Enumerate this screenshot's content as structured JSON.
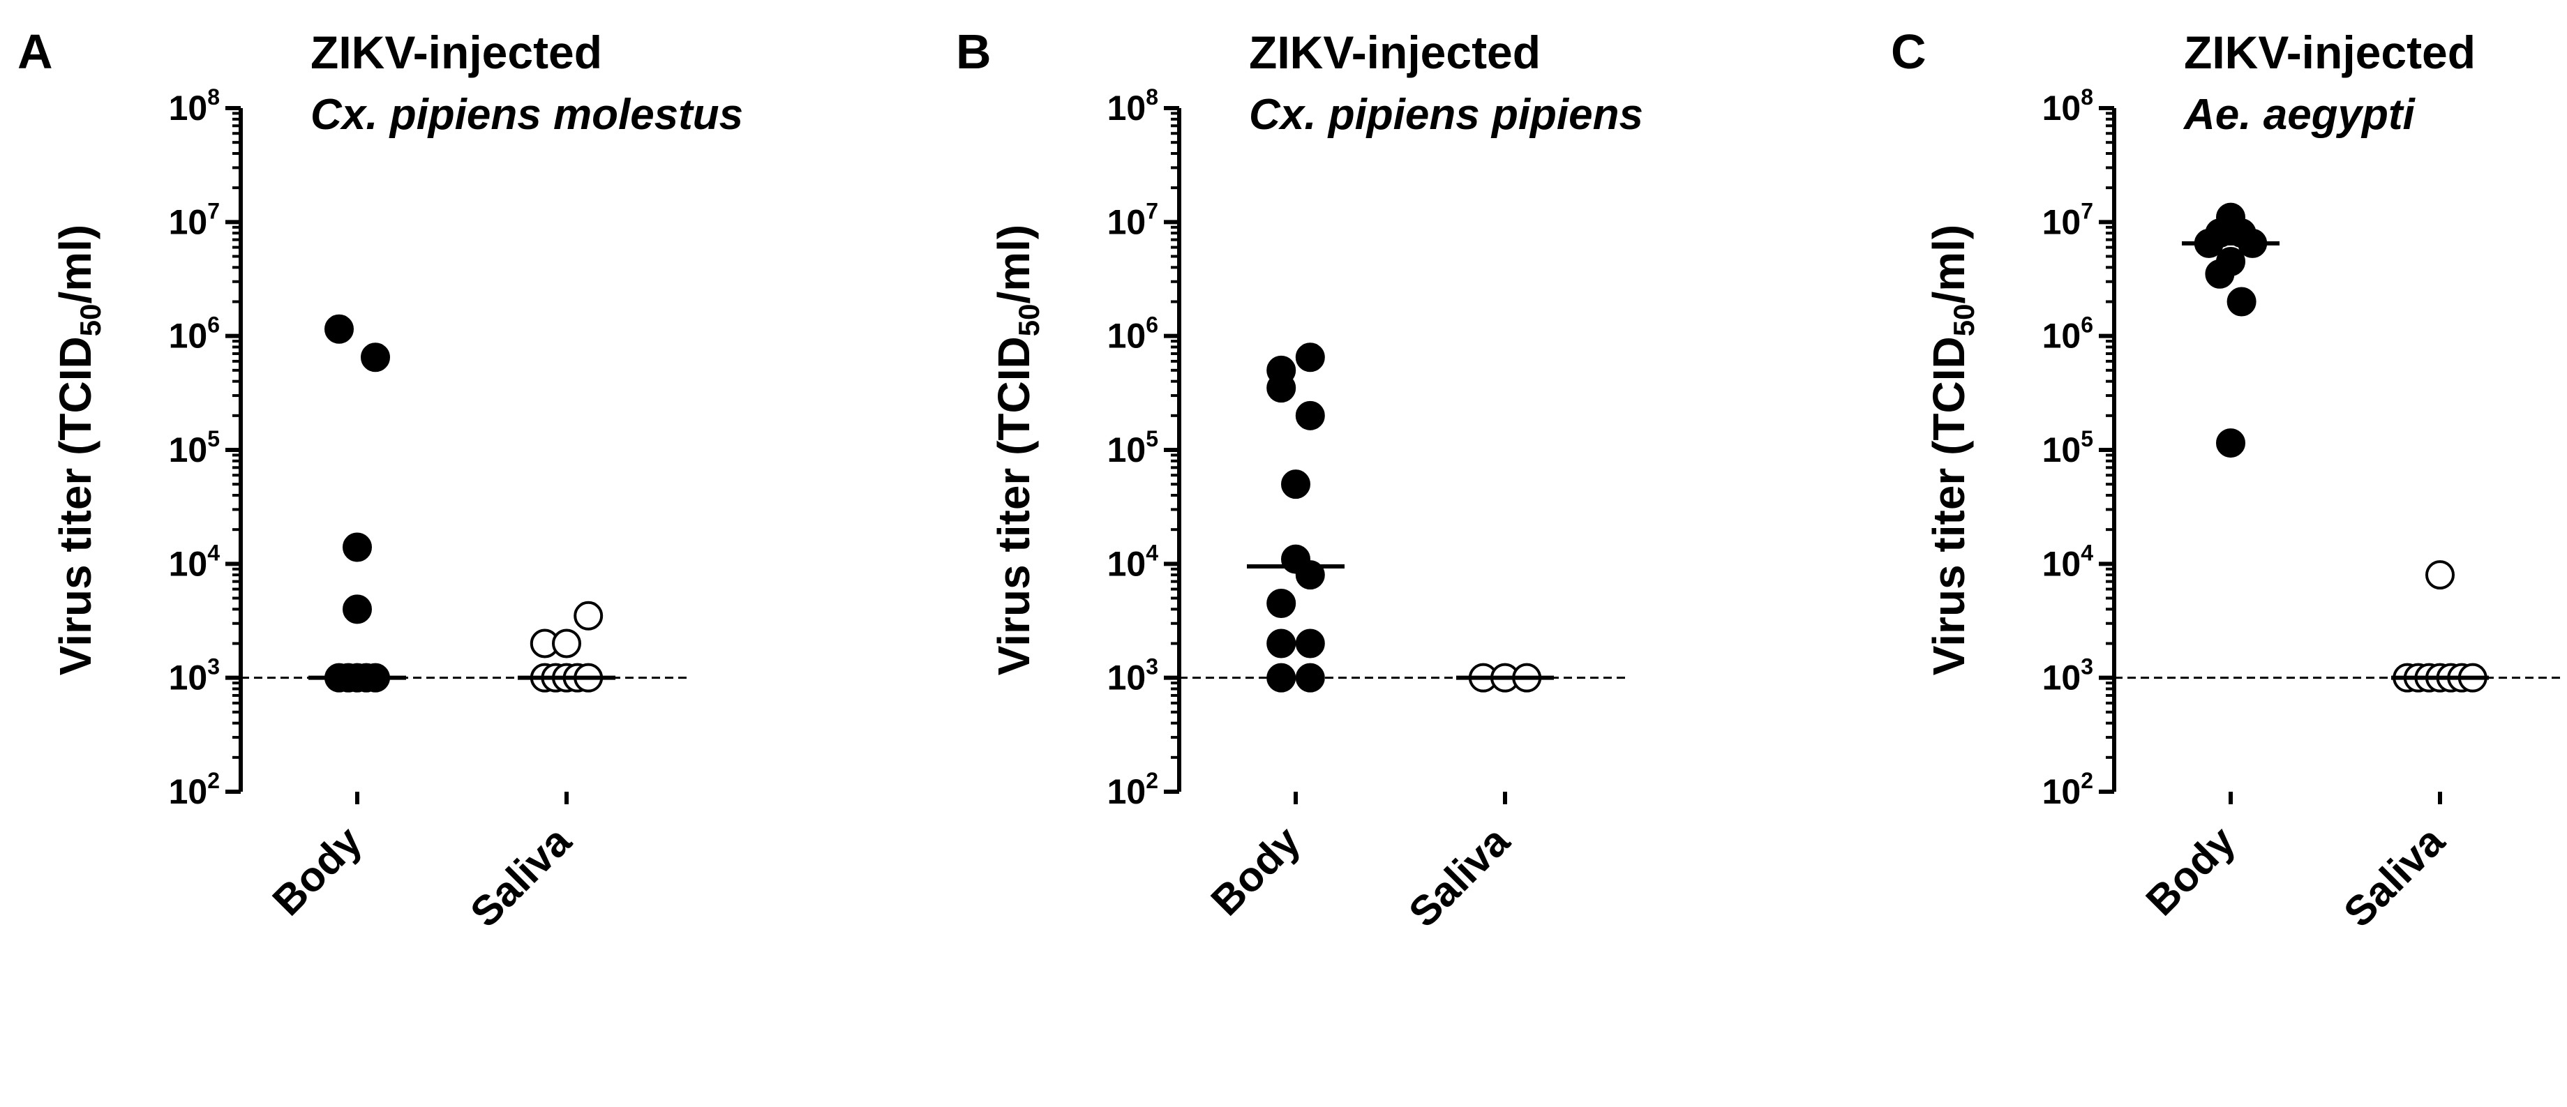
{
  "chart_data": [
    {
      "type": "scatter",
      "panel_label": "A",
      "title": "ZIKV-injected",
      "subtitle": "Cx. pipiens molestus",
      "ylabel": {
        "main": "Virus titer (TCID",
        "sub": "50",
        "tail": "/ml)"
      },
      "yscale": "log10",
      "ylim": [
        100,
        100000000
      ],
      "yticks": [
        {
          "base": "10",
          "exp": "2"
        },
        {
          "base": "10",
          "exp": "3"
        },
        {
          "base": "10",
          "exp": "4"
        },
        {
          "base": "10",
          "exp": "5"
        },
        {
          "base": "10",
          "exp": "6"
        },
        {
          "base": "10",
          "exp": "7"
        },
        {
          "base": "10",
          "exp": "8"
        }
      ],
      "categories": [
        "Body",
        "Saliva"
      ],
      "detection_limit": 1000,
      "series": [
        {
          "name": "Body",
          "filled": true,
          "median": 1000,
          "points": [
            [
              -0.5,
              1000
            ],
            [
              -0.25,
              1000
            ],
            [
              0,
              1000
            ],
            [
              0.25,
              1000
            ],
            [
              0.5,
              1000
            ],
            [
              0,
              4000
            ],
            [
              0,
              14000
            ],
            [
              0.5,
              650000
            ],
            [
              -0.5,
              1150000
            ]
          ]
        },
        {
          "name": "Saliva",
          "filled": false,
          "median": 1000,
          "points": [
            [
              -0.6,
              1000
            ],
            [
              -0.3,
              1000
            ],
            [
              0,
              1000
            ],
            [
              0.3,
              1000
            ],
            [
              0.6,
              1000
            ],
            [
              -0.6,
              2000
            ],
            [
              0,
              2000
            ],
            [
              0.6,
              3500
            ]
          ]
        }
      ]
    },
    {
      "type": "scatter",
      "panel_label": "B",
      "title": "ZIKV-injected",
      "subtitle": "Cx. pipiens pipiens",
      "ylabel": {
        "main": "Virus titer (TCID",
        "sub": "50",
        "tail": "/ml)"
      },
      "yscale": "log10",
      "ylim": [
        100,
        100000000
      ],
      "yticks": [
        {
          "base": "10",
          "exp": "2"
        },
        {
          "base": "10",
          "exp": "3"
        },
        {
          "base": "10",
          "exp": "4"
        },
        {
          "base": "10",
          "exp": "5"
        },
        {
          "base": "10",
          "exp": "6"
        },
        {
          "base": "10",
          "exp": "7"
        },
        {
          "base": "10",
          "exp": "8"
        }
      ],
      "categories": [
        "Body",
        "Saliva"
      ],
      "detection_limit": 1000,
      "series": [
        {
          "name": "Body",
          "filled": true,
          "median": 9500,
          "points": [
            [
              -0.4,
              1000
            ],
            [
              0.4,
              1000
            ],
            [
              -0.4,
              2000
            ],
            [
              0.4,
              2000
            ],
            [
              -0.4,
              4500
            ],
            [
              0.4,
              8000
            ],
            [
              0,
              11000
            ],
            [
              0,
              50000
            ],
            [
              0.4,
              200000
            ],
            [
              -0.4,
              350000
            ],
            [
              -0.4,
              500000
            ],
            [
              0.4,
              650000
            ]
          ]
        },
        {
          "name": "Saliva",
          "filled": false,
          "median": 1000,
          "points": [
            [
              -0.6,
              1000
            ],
            [
              0,
              1000
            ],
            [
              0.6,
              1000
            ]
          ]
        }
      ]
    },
    {
      "type": "scatter",
      "panel_label": "C",
      "title": "ZIKV-injected",
      "subtitle": "Ae. aegypti",
      "ylabel": {
        "main": "Virus titer (TCID",
        "sub": "50",
        "tail": "/ml)"
      },
      "yscale": "log10",
      "ylim": [
        100,
        100000000
      ],
      "yticks": [
        {
          "base": "10",
          "exp": "2"
        },
        {
          "base": "10",
          "exp": "3"
        },
        {
          "base": "10",
          "exp": "4"
        },
        {
          "base": "10",
          "exp": "5"
        },
        {
          "base": "10",
          "exp": "6"
        },
        {
          "base": "10",
          "exp": "7"
        },
        {
          "base": "10",
          "exp": "8"
        }
      ],
      "categories": [
        "Body",
        "Saliva"
      ],
      "detection_limit": 1000,
      "series": [
        {
          "name": "Body",
          "filled": true,
          "median": 6500000,
          "points": [
            [
              0,
              115000
            ],
            [
              0.3,
              2000000
            ],
            [
              -0.3,
              3500000
            ],
            [
              0,
              4500000
            ],
            [
              -0.6,
              6500000
            ],
            [
              0.6,
              6500000
            ],
            [
              -0.3,
              8000000
            ],
            [
              0.3,
              8000000
            ],
            [
              0,
              11000000
            ]
          ]
        },
        {
          "name": "Saliva",
          "filled": false,
          "median": 1000,
          "points": [
            [
              -0.9,
              1000
            ],
            [
              -0.6,
              1000
            ],
            [
              -0.3,
              1000
            ],
            [
              0,
              1000
            ],
            [
              0.3,
              1000
            ],
            [
              0.6,
              1000
            ],
            [
              0.9,
              1000
            ],
            [
              0,
              8000
            ]
          ]
        }
      ]
    }
  ]
}
